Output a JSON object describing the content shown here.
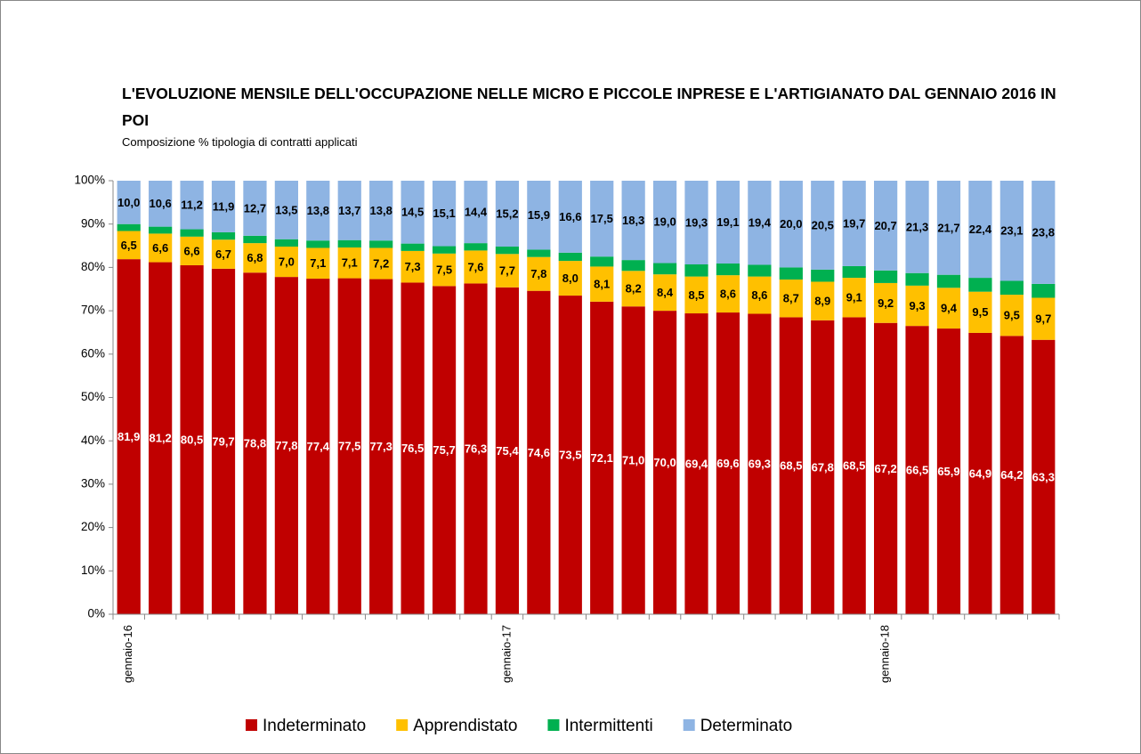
{
  "chart_data": {
    "type": "stacked-bar",
    "title": "L'EVOLUZIONE MENSILE DELL'OCCUPAZIONE NELLE MICRO E PICCOLE INPRESE E L'ARTIGIANATO DAL GENNAIO 2016  IN POI",
    "subtitle": "Composizione % tipologia di contratti applicati",
    "categories": [
      "gennaio-16",
      null,
      null,
      null,
      null,
      null,
      null,
      null,
      null,
      null,
      null,
      null,
      "gennaio-17",
      null,
      null,
      null,
      null,
      null,
      null,
      null,
      null,
      null,
      null,
      null,
      "gennaio-18",
      null,
      null,
      null,
      null,
      null
    ],
    "series": [
      {
        "name": "Indeterminato",
        "color": "#c00000",
        "label_color": "#ffffff",
        "values": [
          81.9,
          81.2,
          80.5,
          79.7,
          78.8,
          77.8,
          77.4,
          77.5,
          77.3,
          76.5,
          75.7,
          76.3,
          75.4,
          74.6,
          73.5,
          72.1,
          71.0,
          70.0,
          69.4,
          69.6,
          69.3,
          68.5,
          67.8,
          68.5,
          67.2,
          66.5,
          65.9,
          64.9,
          64.2,
          63.3
        ],
        "value_labels": [
          "81,9",
          "81,2",
          "80,5",
          "79,7",
          "78,8",
          "77,8",
          "77,4",
          "77,5",
          "77,3",
          "76,5",
          "75,7",
          "76,3",
          "75,4",
          "74,6",
          "73,5",
          "72,1",
          "71,0",
          "70,0",
          "69,4",
          "69,6",
          "69,3",
          "68,5",
          "67,8",
          "68,5",
          "67,2",
          "66,5",
          "65,9",
          "64,9",
          "64,2",
          "63,3"
        ]
      },
      {
        "name": "Apprendistato",
        "color": "#ffc000",
        "label_color": "#000000",
        "values": [
          6.5,
          6.6,
          6.6,
          6.7,
          6.8,
          7.0,
          7.1,
          7.1,
          7.2,
          7.3,
          7.5,
          7.6,
          7.7,
          7.8,
          8.0,
          8.1,
          8.2,
          8.4,
          8.5,
          8.6,
          8.6,
          8.7,
          8.9,
          9.1,
          9.2,
          9.3,
          9.4,
          9.5,
          9.5,
          9.7
        ],
        "value_labels": [
          "6,5",
          "6,6",
          "6,6",
          "6,7",
          "6,8",
          "7,0",
          "7,1",
          "7,1",
          "7,2",
          "7,3",
          "7,5",
          "7,6",
          "7,7",
          "7,8",
          "8,0",
          "8,1",
          "8,2",
          "8,4",
          "8,5",
          "8,6",
          "8,6",
          "8,7",
          "8,9",
          "9,1",
          "9,2",
          "9,3",
          "9,4",
          "9,5",
          "9,5",
          "9,7"
        ]
      },
      {
        "name": "Intermittenti",
        "color": "#00b050",
        "values": [
          1.6,
          1.6,
          1.7,
          1.7,
          1.7,
          1.7,
          1.7,
          1.7,
          1.7,
          1.7,
          1.7,
          1.7,
          1.7,
          1.7,
          1.9,
          2.3,
          2.5,
          2.6,
          2.8,
          2.7,
          2.7,
          2.8,
          2.8,
          2.7,
          2.9,
          2.9,
          3.0,
          3.2,
          3.2,
          3.2
        ]
      },
      {
        "name": "Determinato",
        "color": "#8eb4e3",
        "label_color": "#000000",
        "values": [
          10.0,
          10.6,
          11.2,
          11.9,
          12.7,
          13.5,
          13.8,
          13.7,
          13.8,
          14.5,
          15.1,
          14.4,
          15.2,
          15.9,
          16.6,
          17.5,
          18.3,
          19.0,
          19.3,
          19.1,
          19.4,
          20.0,
          20.5,
          19.7,
          20.7,
          21.3,
          21.7,
          22.4,
          23.1,
          23.8
        ],
        "value_labels": [
          "10,0",
          "10,6",
          "11,2",
          "11,9",
          "12,7",
          "13,5",
          "13,8",
          "13,7",
          "13,8",
          "14,5",
          "15,1",
          "14,4",
          "15,2",
          "15,9",
          "16,6",
          "17,5",
          "18,3",
          "19,0",
          "19,3",
          "19,1",
          "19,4",
          "20,0",
          "20,5",
          "19,7",
          "20,7",
          "21,3",
          "21,7",
          "22,4",
          "23,1",
          "23,8"
        ]
      }
    ],
    "ylim": [
      0,
      100
    ],
    "yticks": [
      {
        "value": 0,
        "label": "0%"
      },
      {
        "value": 10,
        "label": "10%"
      },
      {
        "value": 20,
        "label": "20%"
      },
      {
        "value": 30,
        "label": "30%"
      },
      {
        "value": 40,
        "label": "40%"
      },
      {
        "value": 50,
        "label": "50%"
      },
      {
        "value": 60,
        "label": "60%"
      },
      {
        "value": 70,
        "label": "70%"
      },
      {
        "value": 80,
        "label": "80%"
      },
      {
        "value": 90,
        "label": "90%"
      },
      {
        "value": 100,
        "label": "100%"
      }
    ],
    "legend": "bottom"
  }
}
